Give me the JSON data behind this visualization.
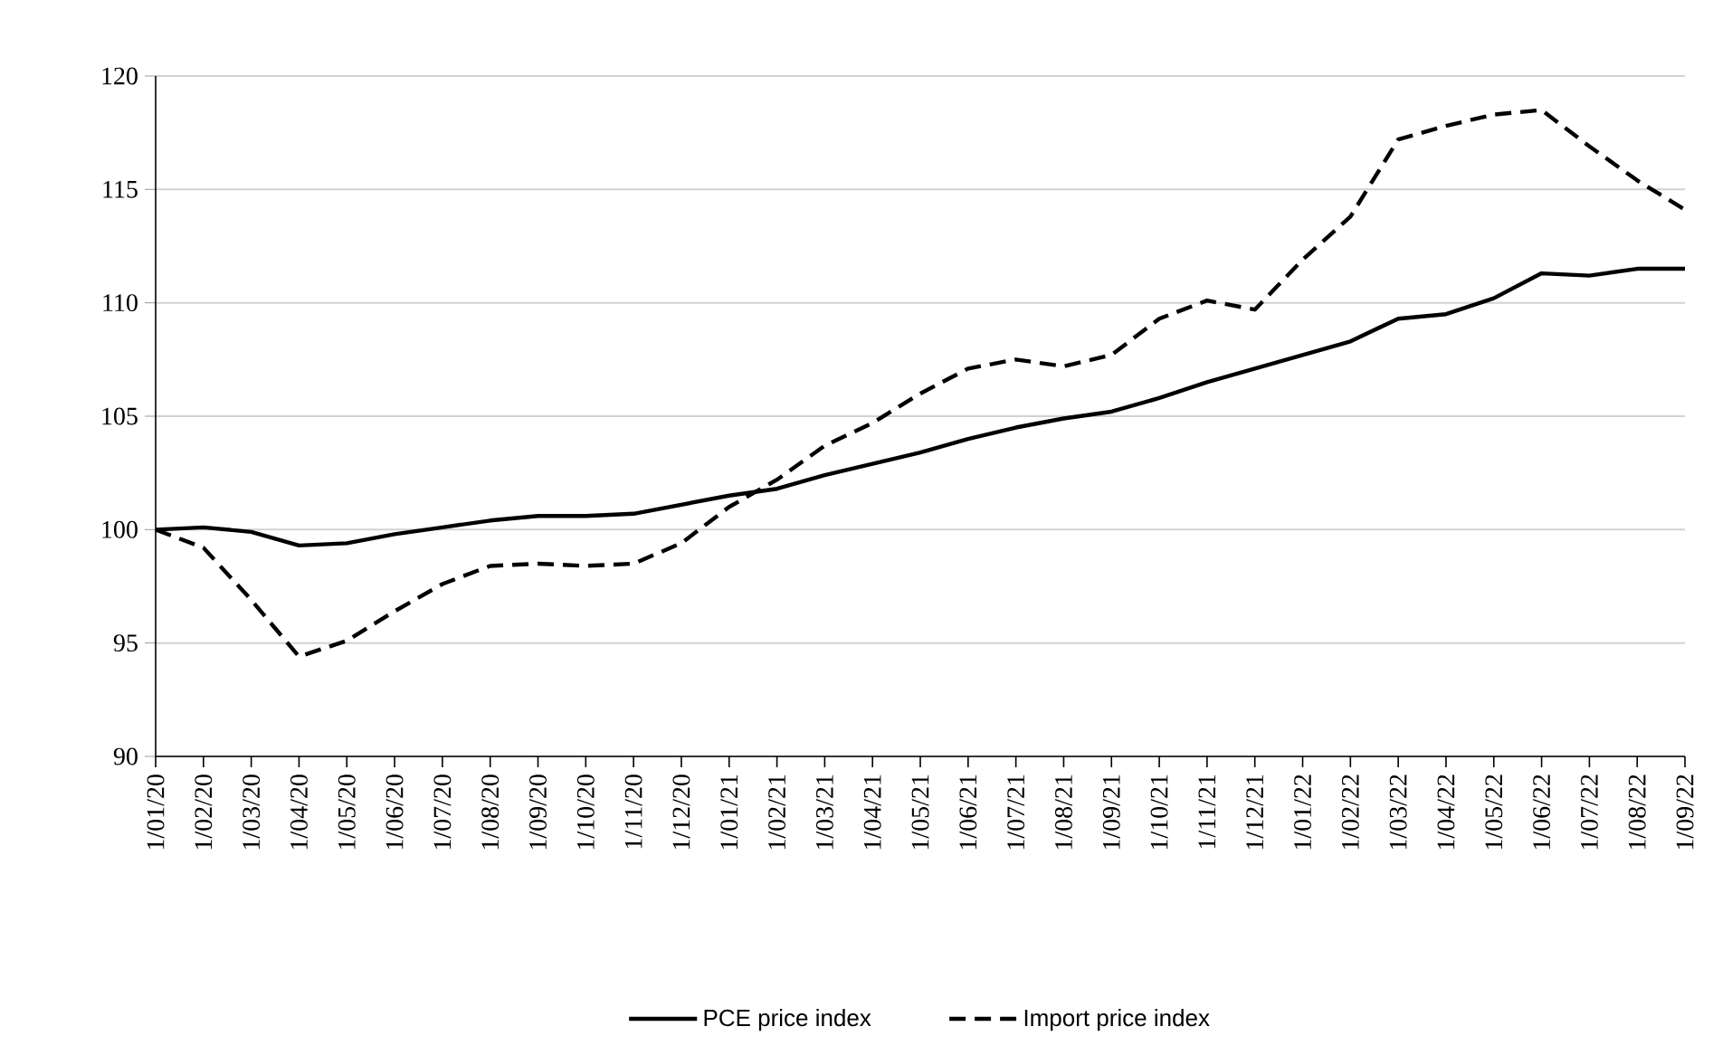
{
  "chart_data": {
    "type": "line",
    "categories": [
      "1/01/20",
      "1/02/20",
      "1/03/20",
      "1/04/20",
      "1/05/20",
      "1/06/20",
      "1/07/20",
      "1/08/20",
      "1/09/20",
      "1/10/20",
      "1/11/20",
      "1/12/20",
      "1/01/21",
      "1/02/21",
      "1/03/21",
      "1/04/21",
      "1/05/21",
      "1/06/21",
      "1/07/21",
      "1/08/21",
      "1/09/21",
      "1/10/21",
      "1/11/21",
      "1/12/21",
      "1/01/22",
      "1/02/22",
      "1/03/22",
      "1/04/22",
      "1/05/22",
      "1/06/22",
      "1/07/22",
      "1/08/22",
      "1/09/22"
    ],
    "series": [
      {
        "name": "PCE price index",
        "color": "#000000",
        "line_style": "solid",
        "values": [
          100,
          100.1,
          99.9,
          99.3,
          99.4,
          99.8,
          100.1,
          100.4,
          100.6,
          100.6,
          100.7,
          101.1,
          101.5,
          101.8,
          102.4,
          102.9,
          103.4,
          104.0,
          104.5,
          104.9,
          105.2,
          105.8,
          106.5,
          107.1,
          107.7,
          108.3,
          109.3,
          109.5,
          110.2,
          111.3,
          111.2,
          111.5,
          111.5
        ]
      },
      {
        "name": "Import price index",
        "color": "#000000",
        "line_style": "dashed",
        "values": [
          100,
          99.2,
          96.9,
          94.4,
          95.1,
          96.4,
          97.6,
          98.4,
          98.5,
          98.4,
          98.5,
          99.4,
          101.0,
          102.2,
          103.7,
          104.7,
          106.0,
          107.1,
          107.5,
          107.2,
          107.7,
          109.3,
          110.1,
          109.7,
          111.9,
          113.8,
          117.2,
          117.8,
          118.3,
          118.5,
          116.9,
          115.4,
          114.1
        ]
      }
    ],
    "ylim": [
      90,
      120
    ],
    "yticks": [
      90,
      95,
      100,
      105,
      110,
      115,
      120
    ],
    "grid": "y",
    "legend": "bottom",
    "marker": "none"
  }
}
